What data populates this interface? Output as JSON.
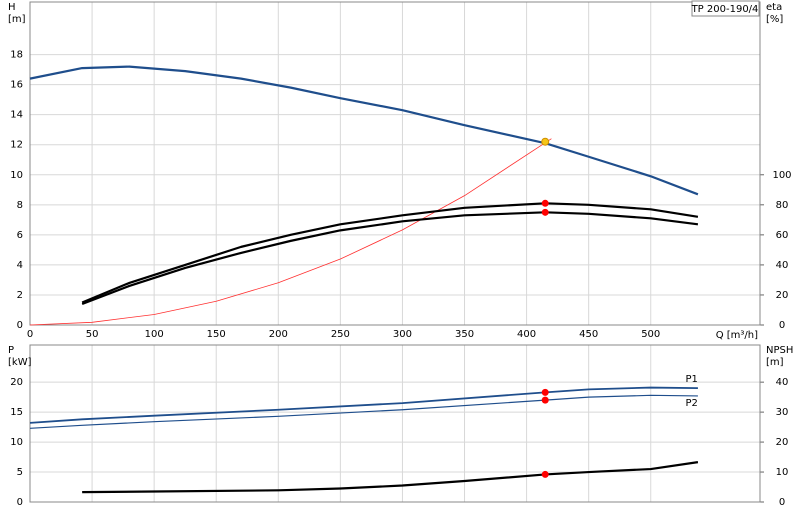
{
  "chart_data": [
    {
      "type": "line",
      "title": "TP 200-190/4",
      "ylabel": "H",
      "ylabel_unit": "[m]",
      "y2label": "eta",
      "y2label_unit": "[%]",
      "xlabel": "Q [m³/h]",
      "xlim": [
        0,
        588
      ],
      "xticks": [
        0,
        50,
        100,
        150,
        200,
        250,
        300,
        350,
        400,
        450,
        500
      ],
      "ylim": [
        0,
        21.5
      ],
      "yticks": [
        0,
        2,
        4,
        6,
        8,
        10,
        12,
        14,
        16,
        18
      ],
      "y2lim": [
        0,
        215
      ],
      "y2ticks": [
        0,
        20,
        40,
        60,
        80,
        100
      ],
      "grid": true,
      "show_xtick_labels": true,
      "series": [
        {
          "color": "#1f4e8c",
          "width": 2.2,
          "x": [
            0,
            42,
            80,
            125,
            170,
            210,
            250,
            300,
            350,
            415,
            450,
            500,
            538
          ],
          "values": [
            16.4,
            17.1,
            17.2,
            16.9,
            16.4,
            15.8,
            15.1,
            14.3,
            13.3,
            12.1,
            11.2,
            9.9,
            8.7
          ]
        },
        {
          "color": "#ff3030",
          "width": 0.8,
          "x": [
            0,
            50,
            100,
            150,
            200,
            250,
            300,
            350,
            420
          ],
          "values": [
            0,
            0.18,
            0.7,
            1.58,
            2.81,
            4.39,
            6.33,
            8.61,
            12.4
          ]
        },
        {
          "color": "#000000",
          "width": 2.2,
          "axis": "y2",
          "x": [
            42,
            80,
            125,
            170,
            210,
            250,
            300,
            350,
            415,
            450,
            500,
            538
          ],
          "values": [
            15,
            28,
            40,
            52,
            60,
            67,
            73,
            78,
            81,
            80,
            77,
            72
          ]
        },
        {
          "color": "#000000",
          "width": 2.2,
          "axis": "y2",
          "x": [
            42,
            80,
            125,
            170,
            210,
            250,
            300,
            350,
            415,
            450,
            500,
            538
          ],
          "values": [
            14,
            26,
            38,
            48,
            56,
            63,
            69,
            73,
            75,
            74,
            71,
            67
          ]
        }
      ],
      "markers": [
        {
          "x": 415,
          "y": 12.2,
          "color": "#f5c518"
        },
        {
          "x": 415,
          "y": 81,
          "axis": "y2",
          "color": "#ff0000"
        },
        {
          "x": 415,
          "y": 75,
          "axis": "y2",
          "color": "#ff0000"
        }
      ]
    },
    {
      "type": "line",
      "ylabel": "P",
      "ylabel_unit": "[kW]",
      "y2label": "NPSH",
      "y2label_unit": "[m]",
      "xlim": [
        0,
        588
      ],
      "xticks": [
        0,
        50,
        100,
        150,
        200,
        250,
        300,
        350,
        400,
        450,
        500
      ],
      "ylim": [
        0,
        26.2
      ],
      "yticks": [
        0,
        5,
        10,
        15,
        20
      ],
      "y2lim": [
        0,
        52.4
      ],
      "y2ticks": [
        0,
        10,
        20,
        30,
        40
      ],
      "grid": true,
      "show_xtick_labels": false,
      "series": [
        {
          "name": "P1",
          "color": "#1f4e8c",
          "width": 1.8,
          "x": [
            0,
            42,
            100,
            200,
            300,
            415,
            450,
            500,
            538
          ],
          "values": [
            13.2,
            13.8,
            14.4,
            15.4,
            16.5,
            18.3,
            18.8,
            19.1,
            19.0
          ]
        },
        {
          "name": "P2",
          "color": "#1f4e8c",
          "width": 1.2,
          "x": [
            0,
            42,
            100,
            200,
            300,
            415,
            450,
            500,
            538
          ],
          "values": [
            12.3,
            12.8,
            13.4,
            14.3,
            15.4,
            17.0,
            17.5,
            17.8,
            17.7
          ]
        },
        {
          "color": "#000000",
          "width": 2.2,
          "axis": "y2",
          "x": [
            42,
            100,
            200,
            250,
            300,
            350,
            415,
            450,
            500,
            538
          ],
          "values": [
            3.3,
            3.5,
            3.9,
            4.5,
            5.5,
            7.0,
            9.2,
            10.0,
            11.0,
            13.3
          ]
        }
      ],
      "markers": [
        {
          "x": 415,
          "y": 18.3,
          "color": "#ff0000"
        },
        {
          "x": 415,
          "y": 17.0,
          "color": "#ff0000"
        },
        {
          "x": 415,
          "y": 9.2,
          "axis": "y2",
          "color": "#ff0000"
        }
      ]
    }
  ]
}
